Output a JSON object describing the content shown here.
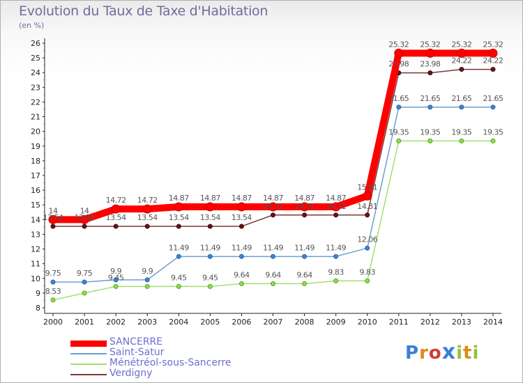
{
  "header": {
    "title": "Evolution du Taux de Taxe d'Habitation",
    "unit": "(en %)"
  },
  "brand": {
    "text": "Proxiti",
    "colors": [
      "#3a7fd4",
      "#e08a1a",
      "#d43a3a",
      "#3a7fd4",
      "#8fc43a",
      "#e08a1a",
      "#8fc43a"
    ]
  },
  "colors": {
    "SANCERRE": "#ff0000",
    "Saint-Satur": "#6aa0cf",
    "Ménétréol-sous-Sancerre": "#9fe070",
    "Verdigny": "#7a3a3a"
  },
  "chart_data": {
    "type": "line",
    "title": "Evolution du Taux de Taxe d'Habitation",
    "ylabel": "(en %)",
    "xlabel": "",
    "x": [
      "2000",
      "2001",
      "2002",
      "2003",
      "2004",
      "2005",
      "2006",
      "2007",
      "2008",
      "2009",
      "2010",
      "2011",
      "2012",
      "2013",
      "2014"
    ],
    "ylim": [
      8,
      26
    ],
    "yticks": [
      8,
      9,
      10,
      11,
      12,
      13,
      14,
      15,
      16,
      17,
      18,
      19,
      20,
      21,
      22,
      23,
      24,
      25,
      26
    ],
    "grid": false,
    "legend_position": "bottom-left",
    "series": [
      {
        "name": "SANCERRE",
        "values": [
          14,
          14,
          14.72,
          14.72,
          14.87,
          14.87,
          14.87,
          14.87,
          14.87,
          14.87,
          15.61,
          25.32,
          25.32,
          25.32,
          25.32
        ],
        "labels": [
          "14",
          "14",
          "14.72",
          "14.72",
          "14.87",
          "14.87",
          "14.87",
          "14.87",
          "14.87",
          "14.87",
          "15.61",
          "25.32",
          "25.32",
          "25.32",
          "25.32"
        ]
      },
      {
        "name": "Saint-Satur",
        "values": [
          9.75,
          9.75,
          9.9,
          9.9,
          11.49,
          11.49,
          11.49,
          11.49,
          11.49,
          11.49,
          12.06,
          21.65,
          21.65,
          21.65,
          21.65
        ],
        "labels": [
          "9.75",
          "9.75",
          "9.9",
          "9.9",
          "11.49",
          "11.49",
          "11.49",
          "11.49",
          "11.49",
          "11.49",
          "12.06",
          "21.65",
          "21.65",
          "21.65",
          "21.65"
        ]
      },
      {
        "name": "Ménétréol-sous-Sancerre",
        "values": [
          8.53,
          9.0,
          9.45,
          9.45,
          9.45,
          9.45,
          9.64,
          9.64,
          9.64,
          9.83,
          9.83,
          19.35,
          19.35,
          19.35,
          19.35
        ],
        "labels": [
          "8.53",
          "",
          "9.45",
          "",
          "9.45",
          "9.45",
          "9.64",
          "9.64",
          "9.64",
          "9.83",
          "9.83",
          "19.35",
          "19.35",
          "19.35",
          "19.35"
        ]
      },
      {
        "name": "Verdigny",
        "values": [
          13.54,
          13.54,
          13.54,
          13.54,
          13.54,
          13.54,
          13.54,
          14.31,
          14.31,
          14.31,
          14.31,
          23.98,
          23.98,
          24.22,
          24.22
        ],
        "labels": [
          "13.54",
          "13.54",
          "13.54",
          "13.54",
          "13.54",
          "13.54",
          "13.54",
          "14.31",
          "14.31",
          "14.31",
          "14.31",
          "23.98",
          "23.98",
          "24.22",
          "24.22"
        ]
      }
    ]
  }
}
